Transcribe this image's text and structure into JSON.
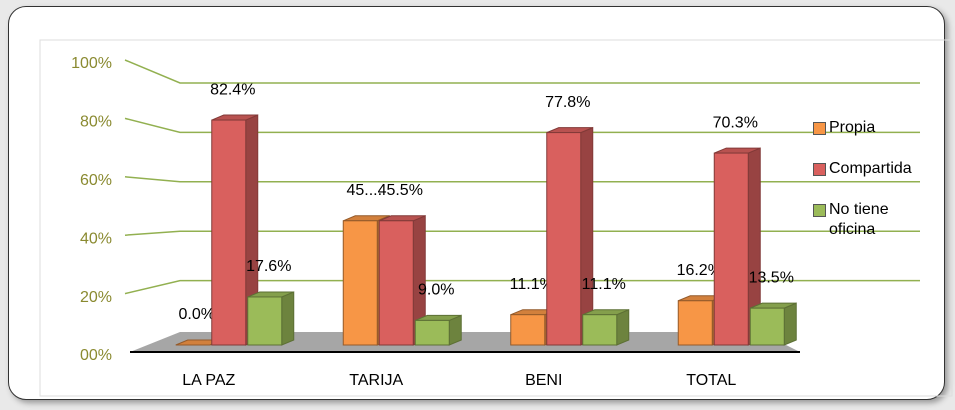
{
  "chart_data": {
    "type": "bar3d",
    "categories": [
      "LA PAZ",
      "TARIJA",
      "BENI",
      "TOTAL"
    ],
    "series": [
      {
        "name": "Propia",
        "color": "#f79646",
        "values": [
          0.0,
          45.5,
          11.1,
          16.2
        ],
        "value_labels": [
          "0.0%",
          "45....",
          "11.1%",
          "16.2%"
        ]
      },
      {
        "name": "Compartida",
        "color": "#d9605e",
        "values": [
          82.4,
          45.5,
          77.8,
          70.3
        ],
        "value_labels": [
          "82.4%",
          "45.5%",
          "77.8%",
          "70.3%"
        ]
      },
      {
        "name": "No tiene oficina",
        "color": "#9bbb59",
        "values": [
          17.6,
          9.0,
          11.1,
          13.5
        ],
        "value_labels": [
          "17.6%",
          "9.0%",
          "11.1%",
          "13.5%"
        ]
      }
    ],
    "ylim": [
      0,
      100
    ],
    "yticks": [
      {
        "value": 0,
        "label": "00%"
      },
      {
        "value": 20,
        "label": "20%"
      },
      {
        "value": 40,
        "label": "40%"
      },
      {
        "value": 60,
        "label": "60%"
      },
      {
        "value": 80,
        "label": "80%"
      },
      {
        "value": 100,
        "label": "100%"
      }
    ],
    "grid": true,
    "legend": "right"
  }
}
